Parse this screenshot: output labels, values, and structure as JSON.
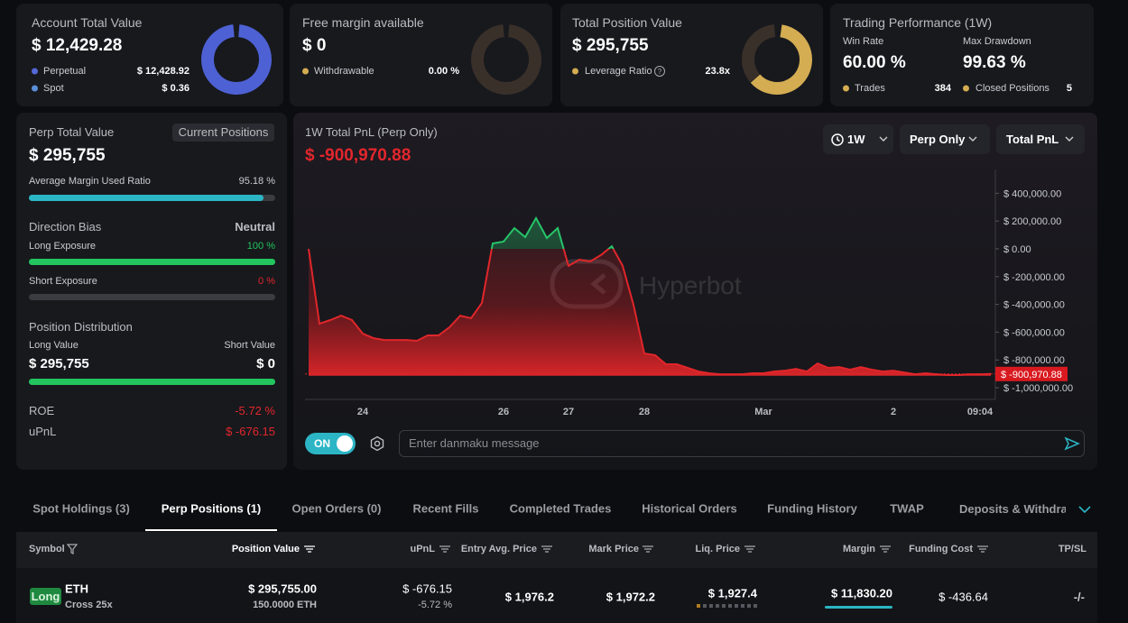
{
  "top_cards": [
    {
      "title": "Account Total Value",
      "value": "$ 12,429.28",
      "rows": [
        {
          "label": "Perpetual",
          "value": "$ 12,428.92"
        },
        {
          "label": "Spot",
          "value": "$ 0.36"
        }
      ]
    },
    {
      "title": "Free margin available",
      "value": "$ 0",
      "rows": [
        {
          "label": "Withdrawable",
          "value": "0.00 %"
        }
      ]
    },
    {
      "title": "Total Position Value",
      "value": "$ 295,755",
      "rows": [
        {
          "label": "Leverage Ratio",
          "value": "23.8x"
        }
      ]
    }
  ],
  "performance": {
    "title": "Trading Performance (1W)",
    "stats": [
      {
        "label": "Win Rate",
        "value": "60.00 %"
      },
      {
        "label": "Max Drawdown",
        "value": "99.63 %"
      }
    ],
    "rows": [
      {
        "label": "Trades",
        "value": "384"
      },
      {
        "label": "Closed Positions",
        "value": "5"
      }
    ]
  },
  "summary": {
    "title": "Perp Total Value",
    "button": "Current Positions",
    "value": "$ 295,755",
    "margin_ratio": {
      "label": "Average Margin Used Ratio",
      "value": "95.18 %"
    },
    "direction": {
      "title": "Direction Bias",
      "value": "Neutral",
      "long": {
        "label": "Long Exposure",
        "value": "100 %"
      },
      "short": {
        "label": "Short Exposure",
        "value": "0 %"
      }
    },
    "distribution": {
      "title": "Position Distribution",
      "long_label": "Long Value",
      "short_label": "Short Value",
      "long_value": "$ 295,755",
      "short_value": "$ 0"
    },
    "roe": {
      "label": "ROE",
      "value": "-5.72 %"
    },
    "upnl": {
      "label": "uPnL",
      "value": "$ -676.15"
    }
  },
  "chart_panel": {
    "pnl": "$ -900,970.88",
    "filters": [
      "1W",
      "Perp Only",
      "Total PnL"
    ],
    "toggle": "ON",
    "placeholder": "Enter danmaku message"
  },
  "chart_data": {
    "type": "line",
    "title": "1W Total PnL (Perp Only)",
    "watermark": "Hyperbot",
    "categories": [
      null,
      null,
      null,
      null,
      null,
      "24",
      null,
      null,
      null,
      null,
      null,
      null,
      null,
      null,
      null,
      null,
      null,
      null,
      "26",
      null,
      null,
      null,
      null,
      null,
      "27",
      null,
      null,
      null,
      null,
      null,
      null,
      "28",
      null,
      null,
      null,
      null,
      null,
      null,
      null,
      null,
      null,
      null,
      "Mar",
      null,
      null,
      null,
      null,
      null,
      null,
      null,
      null,
      null,
      null,
      null,
      "2",
      null,
      null,
      null,
      null,
      null,
      null,
      null,
      "09:04",
      null
    ],
    "values": [
      0,
      -539000,
      -513000,
      -481000,
      -513000,
      -610000,
      -643000,
      -656000,
      -656000,
      -656000,
      -662000,
      -623000,
      -623000,
      -565000,
      -481000,
      -500000,
      -390000,
      39000,
      52000,
      149000,
      84000,
      221000,
      78000,
      149000,
      -123000,
      -78000,
      -91000,
      -45000,
      19000,
      -123000,
      -403000,
      -753000,
      -766000,
      -831000,
      -831000,
      -857000,
      -883000,
      -896000,
      -903000,
      -903000,
      -903000,
      -896000,
      -896000,
      -883000,
      -877000,
      -864000,
      -883000,
      -825000,
      -857000,
      -851000,
      -870000,
      -851000,
      -870000,
      -883000,
      -877000,
      -890000,
      -903000,
      -896000,
      -903000,
      -909000,
      -909000,
      -903000,
      -903000,
      -900970.88
    ],
    "colors": {
      "positive": "#27c46a",
      "negative": "#e0262a"
    },
    "ylim": [
      -1084000,
      571000
    ],
    "yticks": [
      {
        "value": 400000,
        "label": "$ 400,000.00"
      },
      {
        "value": 200000,
        "label": "$ 200,000.00"
      },
      {
        "value": 0,
        "label": "$ 0.00"
      },
      {
        "value": -200000,
        "label": "$ -200,000.00"
      },
      {
        "value": -400000,
        "label": "$ -400,000.00"
      },
      {
        "value": -600000,
        "label": "$ -600,000.00"
      },
      {
        "value": -800000,
        "label": "$ -800,000.00"
      },
      {
        "value": -1000000,
        "label": "$ -1,000,000.00"
      }
    ],
    "grid": false
  },
  "tabs": [
    "Spot Holdings (3)",
    "Perp Positions (1)",
    "Open Orders (0)",
    "Recent Fills",
    "Completed Trades",
    "Historical Orders",
    "Funding History",
    "TWAP",
    "Deposits & Withdraw"
  ],
  "table": {
    "columns": [
      "Symbol",
      "Position Value",
      "uPnL",
      "Entry Avg. Price",
      "Mark Price",
      "Liq. Price",
      "Margin",
      "Funding Cost",
      "TP/SL"
    ],
    "rows": [
      {
        "side": "Long",
        "symbol": "ETH",
        "mode": "Cross 25x",
        "position_value": "$ 295,755.00",
        "size": "150.0000 ETH",
        "upnl": "$ -676.15",
        "upnl_pct": "-5.72 %",
        "entry": "$ 1,976.2",
        "mark": "$ 1,972.2",
        "liq": "$ 1,927.4",
        "margin": "$ 11,830.20",
        "funding": "$ -436.64",
        "tpsl": "-/-"
      }
    ]
  }
}
